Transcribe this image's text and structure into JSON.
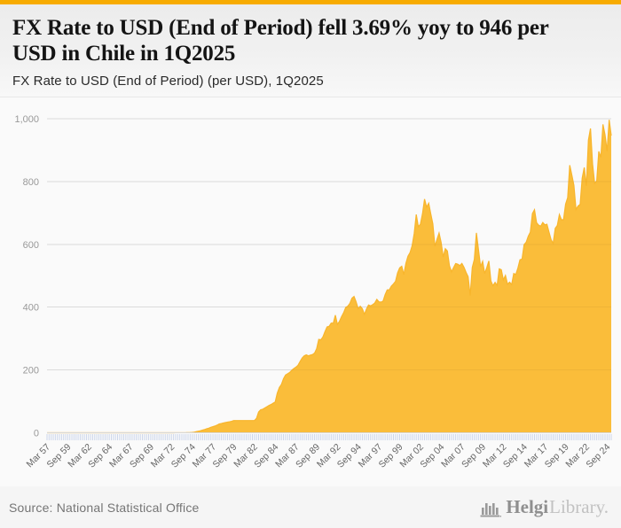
{
  "header": {
    "title": "FX Rate to USD (End of Period) fell 3.69% yoy to 946 per USD in Chile in 1Q2025",
    "subtitle": "FX Rate to USD (End of Period) (per USD), 1Q2025"
  },
  "footer": {
    "source": "Source: National Statistical Office",
    "logo_icon": "bar-chart-building-icon",
    "logo_text_primary": "Helgi",
    "logo_text_secondary": "Library."
  },
  "chart_data": {
    "type": "area",
    "title": "FX Rate to USD (End of Period) (per USD), 1Q2025",
    "xlabel": "",
    "ylabel": "",
    "x_start": "Mar 1957",
    "x_end": "Mar 2025",
    "frequency": "quarterly",
    "ylim": [
      0,
      1000
    ],
    "y_ticks": [
      0,
      200,
      400,
      600,
      800,
      1000
    ],
    "grid": true,
    "legend": "none",
    "x_tick_every": 10,
    "x_tick_labels": [
      "Mar 57",
      "Sep 59",
      "Mar 62",
      "Sep 64",
      "Mar 67",
      "Sep 69",
      "Mar 72",
      "Sep 74",
      "Mar 77",
      "Sep 79",
      "Mar 82",
      "Sep 84",
      "Mar 87",
      "Sep 89",
      "Mar 92",
      "Sep 94",
      "Mar 97",
      "Sep 99",
      "Mar 02",
      "Sep 04",
      "Mar 07",
      "Sep 09",
      "Mar 12",
      "Sep 14",
      "Mar 17",
      "Sep 19",
      "Mar 22",
      "Sep 24"
    ],
    "series": [
      {
        "name": "FX Rate to USD (End of Period), per USD",
        "last_value": 946,
        "yoy_change_pct": -3.69,
        "values": [
          0,
          0,
          0,
          0,
          0,
          0,
          0,
          0,
          0,
          0,
          0,
          0,
          0,
          0,
          0,
          0,
          0,
          0,
          0,
          0,
          0,
          0,
          0,
          0,
          0,
          0,
          0,
          0,
          0,
          0,
          0,
          0,
          0,
          0,
          0,
          0,
          0,
          0,
          0,
          0,
          0,
          0,
          0,
          0,
          0,
          0,
          0,
          0,
          0,
          0,
          0,
          0,
          0,
          0,
          0,
          0,
          0,
          0,
          0,
          0,
          0,
          0,
          0.1,
          0.1,
          0.1,
          0.1,
          0.2,
          0.3,
          0.6,
          0.8,
          1.2,
          1.9,
          3.7,
          5,
          6.4,
          8.5,
          10.5,
          13,
          14.5,
          17.4,
          19.5,
          21.5,
          24.4,
          28,
          29.4,
          31,
          32.6,
          34,
          35.1,
          36.6,
          39,
          39,
          39,
          39,
          39,
          39,
          39,
          39,
          39,
          39,
          39,
          46,
          66,
          73.4,
          75,
          79,
          83,
          87.1,
          90,
          94,
          98,
          126,
          144,
          154,
          172,
          183.9,
          188,
          192,
          199,
          204.7,
          209,
          215,
          227,
          238.1,
          245,
          248,
          245,
          247.2,
          249,
          254,
          268,
          297.4,
          296,
          305,
          322,
          337.1,
          339,
          349,
          349,
          374.5,
          345,
          355,
          370,
          382.3,
          399,
          403,
          412,
          428.5,
          434,
          417,
          395,
          402.9,
          395,
          377,
          394,
          406.9,
          404,
          408,
          413,
          424.9,
          417,
          416,
          419,
          439.8,
          455,
          455,
          467,
          473.8,
          482,
          509,
          525,
          530.1,
          504,
          539,
          562,
          573.6,
          595,
          634,
          695,
          656.2,
          664,
          697,
          744,
          718.6,
          731,
          697,
          665,
          593.8,
          616,
          636,
          606,
          559.8,
          586,
          579,
          532,
          512.5,
          526,
          539,
          537,
          532.4,
          539,
          527,
          511,
          496.9,
          437,
          526,
          552,
          636.5,
          583,
          529,
          546,
          507.1,
          526,
          547,
          483,
          468,
          479,
          469,
          522,
          519.2,
          487,
          501,
          473,
          479.5,
          472,
          507,
          504,
          524.6,
          551,
          553,
          599,
          606.8,
          626,
          639,
          698,
          710.2,
          669,
          661,
          658,
          669.5,
          662,
          664,
          639,
          614.8,
          603,
          651,
          660,
          694.8,
          678,
          679,
          728,
          748.7,
          852,
          821,
          788,
          711,
          722,
          727,
          811,
          844.7,
          786,
          932,
          969,
          855.9,
          794,
          802,
          896,
          877.1,
          982,
          949,
          897,
          996.5,
          946
        ]
      }
    ],
    "colors": {
      "top_bar": "#F7AB00",
      "area_fill": "#FABD3A",
      "area_line": "#F8B52C",
      "grid": "#E5E5E5",
      "grid_overlay": "rgba(0,0,0,0.045)",
      "axis": "#D8D8D8",
      "tick": "#CCD6EB",
      "y_label": "#999999",
      "x_label": "#666666"
    }
  }
}
